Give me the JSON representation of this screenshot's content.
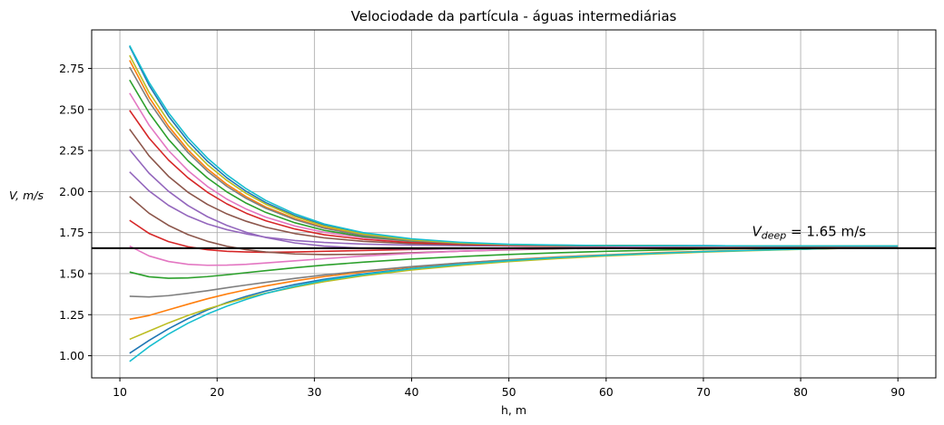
{
  "chart_data": {
    "type": "line",
    "title": "Velociodade da partícula - águas intermediárias",
    "xlabel": "h, m",
    "ylabel": "V, m/s",
    "xlim": [
      7.1,
      93.9
    ],
    "ylim": [
      0.865,
      2.985
    ],
    "xticks": [
      10,
      20,
      30,
      40,
      50,
      60,
      70,
      80,
      90
    ],
    "xtick_labels": [
      "10",
      "20",
      "30",
      "40",
      "50",
      "60",
      "70",
      "80",
      "90"
    ],
    "yticks": [
      1.0,
      1.25,
      1.5,
      1.75,
      2.0,
      2.25,
      2.5,
      2.75
    ],
    "ytick_labels": [
      "1.00",
      "1.25",
      "1.50",
      "1.75",
      "2.00",
      "2.25",
      "2.50",
      "2.75"
    ],
    "grid": true,
    "legend": "none",
    "x": [
      11,
      13,
      15,
      17,
      19,
      21,
      23,
      25,
      28,
      31,
      35,
      40,
      45,
      50,
      55,
      60,
      65,
      70,
      75,
      80,
      85,
      90
    ],
    "series": [
      {
        "color": "#1f77b4",
        "values": [
          1.015,
          1.093,
          1.164,
          1.226,
          1.279,
          1.324,
          1.362,
          1.394,
          1.434,
          1.466,
          1.498,
          1.532,
          1.558,
          1.579,
          1.598,
          1.612,
          1.624,
          1.634,
          1.642,
          1.649,
          1.656,
          1.661
        ]
      },
      {
        "color": "#ff7f0e",
        "values": [
          1.222,
          1.245,
          1.28,
          1.314,
          1.347,
          1.376,
          1.402,
          1.425,
          1.456,
          1.482,
          1.51,
          1.54,
          1.565,
          1.585,
          1.602,
          1.615,
          1.627,
          1.636,
          1.644,
          1.651,
          1.657,
          1.662
        ]
      },
      {
        "color": "#2ca02c",
        "values": [
          1.51,
          1.481,
          1.472,
          1.474,
          1.482,
          1.493,
          1.506,
          1.518,
          1.536,
          1.552,
          1.57,
          1.589,
          1.604,
          1.617,
          1.627,
          1.636,
          1.643,
          1.649,
          1.654,
          1.658,
          1.662,
          1.665
        ]
      },
      {
        "color": "#d62728",
        "values": [
          1.825,
          1.745,
          1.695,
          1.664,
          1.646,
          1.636,
          1.632,
          1.63,
          1.632,
          1.636,
          1.641,
          1.647,
          1.652,
          1.656,
          1.659,
          1.661,
          1.663,
          1.664,
          1.665,
          1.666,
          1.667,
          1.667
        ]
      },
      {
        "color": "#9467bd",
        "values": [
          2.12,
          2.004,
          1.916,
          1.851,
          1.803,
          1.768,
          1.742,
          1.722,
          1.702,
          1.69,
          1.68,
          1.674,
          1.671,
          1.67,
          1.669,
          1.669,
          1.669,
          1.669,
          1.669,
          1.669,
          1.669,
          1.669
        ]
      },
      {
        "color": "#8c564b",
        "values": [
          2.38,
          2.218,
          2.093,
          1.996,
          1.922,
          1.864,
          1.819,
          1.783,
          1.744,
          1.718,
          1.697,
          1.683,
          1.676,
          1.673,
          1.671,
          1.67,
          1.67,
          1.67,
          1.669,
          1.669,
          1.669,
          1.669
        ]
      },
      {
        "color": "#e377c2",
        "values": [
          2.6,
          2.405,
          2.25,
          2.128,
          2.031,
          1.954,
          1.893,
          1.844,
          1.79,
          1.752,
          1.719,
          1.695,
          1.682,
          1.676,
          1.673,
          1.671,
          1.67,
          1.67,
          1.669,
          1.669,
          1.669,
          1.669
        ]
      },
      {
        "color": "#7f7f7f",
        "values": [
          1.362,
          1.358,
          1.366,
          1.38,
          1.396,
          1.414,
          1.431,
          1.447,
          1.471,
          1.492,
          1.516,
          1.543,
          1.565,
          1.584,
          1.6,
          1.613,
          1.624,
          1.634,
          1.642,
          1.649,
          1.655,
          1.66
        ]
      },
      {
        "color": "#bcbd22",
        "values": [
          1.1,
          1.15,
          1.2,
          1.245,
          1.285,
          1.32,
          1.353,
          1.381,
          1.418,
          1.451,
          1.487,
          1.522,
          1.55,
          1.573,
          1.592,
          1.608,
          1.62,
          1.631,
          1.64,
          1.648,
          1.655,
          1.661
        ]
      },
      {
        "color": "#17becf",
        "values": [
          0.965,
          1.055,
          1.132,
          1.198,
          1.254,
          1.302,
          1.343,
          1.379,
          1.423,
          1.459,
          1.494,
          1.53,
          1.557,
          1.579,
          1.598,
          1.612,
          1.624,
          1.634,
          1.642,
          1.649,
          1.656,
          1.661
        ]
      },
      {
        "color": "#1f77b4",
        "values": [
          2.885,
          2.648,
          2.46,
          2.308,
          2.185,
          2.084,
          2.001,
          1.933,
          1.854,
          1.795,
          1.744,
          1.708,
          1.688,
          1.678,
          1.673,
          1.671,
          1.67,
          1.67,
          1.669,
          1.669,
          1.669,
          1.669
        ]
      },
      {
        "color": "#ff7f0e",
        "values": [
          2.8,
          2.575,
          2.398,
          2.254,
          2.138,
          2.044,
          1.968,
          1.906,
          1.835,
          1.781,
          1.735,
          1.702,
          1.685,
          1.676,
          1.672,
          1.67,
          1.67,
          1.669,
          1.669,
          1.669,
          1.669,
          1.669
        ]
      },
      {
        "color": "#2ca02c",
        "values": [
          2.68,
          2.48,
          2.318,
          2.188,
          2.083,
          1.998,
          1.929,
          1.873,
          1.81,
          1.764,
          1.726,
          1.698,
          1.683,
          1.676,
          1.672,
          1.67,
          1.67,
          1.669,
          1.669,
          1.669,
          1.669,
          1.669
        ]
      },
      {
        "color": "#d62728",
        "values": [
          2.495,
          2.326,
          2.192,
          2.084,
          1.996,
          1.925,
          1.868,
          1.822,
          1.772,
          1.737,
          1.709,
          1.689,
          1.679,
          1.673,
          1.671,
          1.67,
          1.669,
          1.669,
          1.669,
          1.669,
          1.669,
          1.669
        ]
      },
      {
        "color": "#9467bd",
        "values": [
          2.255,
          2.112,
          2.002,
          1.915,
          1.847,
          1.794,
          1.752,
          1.72,
          1.687,
          1.668,
          1.655,
          1.65,
          1.651,
          1.654,
          1.657,
          1.66,
          1.662,
          1.663,
          1.664,
          1.665,
          1.666,
          1.667
        ]
      },
      {
        "color": "#8c564b",
        "values": [
          1.97,
          1.868,
          1.794,
          1.738,
          1.697,
          1.667,
          1.646,
          1.632,
          1.62,
          1.616,
          1.618,
          1.627,
          1.637,
          1.645,
          1.651,
          1.656,
          1.659,
          1.661,
          1.663,
          1.664,
          1.665,
          1.666
        ]
      },
      {
        "color": "#e377c2",
        "values": [
          1.668,
          1.608,
          1.574,
          1.557,
          1.551,
          1.552,
          1.557,
          1.565,
          1.578,
          1.591,
          1.607,
          1.624,
          1.637,
          1.647,
          1.654,
          1.659,
          1.662,
          1.664,
          1.666,
          1.667,
          1.667,
          1.668
        ]
      },
      {
        "color": "#7f7f7f",
        "values": [
          2.758,
          2.548,
          2.378,
          2.238,
          2.124,
          2.032,
          1.958,
          1.898,
          1.829,
          1.777,
          1.732,
          1.7,
          1.684,
          1.676,
          1.672,
          1.67,
          1.67,
          1.669,
          1.669,
          1.669,
          1.669,
          1.669
        ]
      },
      {
        "color": "#bcbd22",
        "values": [
          2.83,
          2.605,
          2.428,
          2.283,
          2.164,
          2.068,
          1.988,
          1.923,
          1.847,
          1.79,
          1.741,
          1.706,
          1.687,
          1.677,
          1.673,
          1.671,
          1.67,
          1.669,
          1.669,
          1.669,
          1.669,
          1.669
        ]
      },
      {
        "color": "#17becf",
        "values": [
          2.89,
          2.665,
          2.48,
          2.328,
          2.204,
          2.102,
          2.017,
          1.946,
          1.864,
          1.803,
          1.75,
          1.712,
          1.691,
          1.679,
          1.674,
          1.671,
          1.67,
          1.67,
          1.669,
          1.669,
          1.669,
          1.669
        ]
      }
    ],
    "reference_line": {
      "y": 1.655,
      "color": "#000000"
    },
    "annotation": {
      "text_main": "V",
      "text_sub": "deep",
      "text_rest": " = 1.65 m/s",
      "x": 75,
      "y": 1.73
    }
  }
}
